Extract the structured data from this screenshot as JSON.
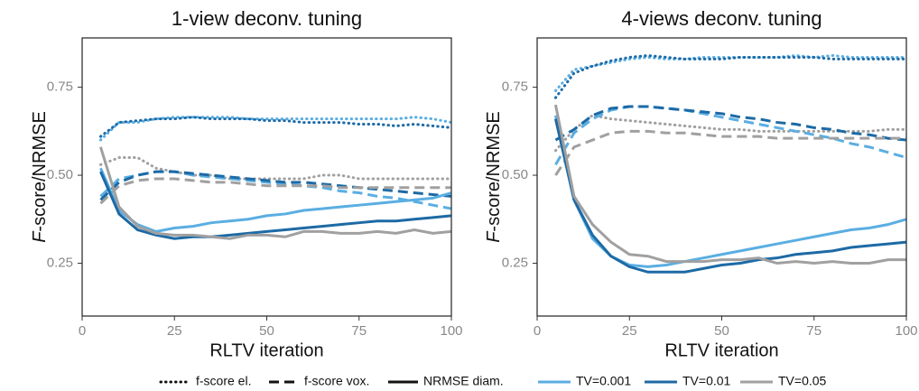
{
  "chart_data": [
    {
      "type": "line",
      "title": "1-view deconv. tuning",
      "xlabel": "RLTV iteration",
      "ylabel": {
        "italic": "F",
        "rest": "-score/NRMSE"
      },
      "xlim": [
        0,
        100
      ],
      "xticks": [
        0,
        25,
        50,
        75,
        100
      ],
      "ylim": [
        0.1,
        0.89
      ],
      "yticks": [
        0.25,
        {
          "value": 0.5,
          "label": "0.50"
        },
        0.75
      ],
      "x": [
        5,
        10,
        15,
        20,
        25,
        30,
        35,
        40,
        45,
        50,
        55,
        60,
        65,
        70,
        75,
        80,
        85,
        90,
        95,
        100
      ],
      "series": [
        {
          "dash": "dotted",
          "color": "#5aaee2",
          "values": [
            0.6,
            0.65,
            0.65,
            0.66,
            0.665,
            0.665,
            0.665,
            0.665,
            0.66,
            0.66,
            0.66,
            0.66,
            0.66,
            0.66,
            0.66,
            0.66,
            0.66,
            0.665,
            0.66,
            0.65
          ]
        },
        {
          "dash": "dotted",
          "color": "#1d6aa5",
          "values": [
            0.61,
            0.65,
            0.655,
            0.66,
            0.66,
            0.665,
            0.66,
            0.66,
            0.66,
            0.655,
            0.655,
            0.65,
            0.65,
            0.65,
            0.645,
            0.645,
            0.64,
            0.645,
            0.64,
            0.635
          ]
        },
        {
          "dash": "dotted",
          "color": "#a0a0a0",
          "values": [
            0.53,
            0.55,
            0.55,
            0.52,
            0.51,
            0.5,
            0.5,
            0.49,
            0.49,
            0.49,
            0.49,
            0.49,
            0.5,
            0.5,
            0.49,
            0.49,
            0.49,
            0.49,
            0.49,
            0.49
          ]
        },
        {
          "dash": "dashed",
          "color": "#5aaee2",
          "values": [
            0.44,
            0.49,
            0.5,
            0.51,
            0.51,
            0.5,
            0.495,
            0.49,
            0.485,
            0.48,
            0.475,
            0.47,
            0.465,
            0.455,
            0.45,
            0.44,
            0.435,
            0.425,
            0.415,
            0.405
          ]
        },
        {
          "dash": "dashed",
          "color": "#1d6aa5",
          "values": [
            0.43,
            0.48,
            0.5,
            0.51,
            0.51,
            0.505,
            0.5,
            0.495,
            0.49,
            0.485,
            0.48,
            0.48,
            0.475,
            0.47,
            0.465,
            0.46,
            0.455,
            0.45,
            0.445,
            0.44
          ]
        },
        {
          "dash": "dashed",
          "color": "#a0a0a0",
          "values": [
            0.42,
            0.47,
            0.485,
            0.49,
            0.49,
            0.485,
            0.48,
            0.48,
            0.475,
            0.47,
            0.47,
            0.47,
            0.47,
            0.465,
            0.465,
            0.465,
            0.465,
            0.465,
            0.465,
            0.465
          ]
        },
        {
          "dash": "solid",
          "color": "#5aaee2",
          "values": [
            0.52,
            0.4,
            0.36,
            0.34,
            0.35,
            0.355,
            0.365,
            0.37,
            0.375,
            0.385,
            0.39,
            0.4,
            0.405,
            0.41,
            0.415,
            0.42,
            0.425,
            0.43,
            0.435,
            0.45
          ]
        },
        {
          "dash": "solid",
          "color": "#1d6aa5",
          "values": [
            0.51,
            0.39,
            0.345,
            0.33,
            0.32,
            0.325,
            0.325,
            0.33,
            0.335,
            0.34,
            0.345,
            0.35,
            0.355,
            0.36,
            0.365,
            0.37,
            0.37,
            0.375,
            0.38,
            0.385
          ]
        },
        {
          "dash": "solid",
          "color": "#a0a0a0",
          "values": [
            0.58,
            0.41,
            0.355,
            0.335,
            0.33,
            0.33,
            0.325,
            0.32,
            0.33,
            0.33,
            0.325,
            0.34,
            0.34,
            0.335,
            0.335,
            0.34,
            0.335,
            0.345,
            0.335,
            0.34
          ]
        }
      ]
    },
    {
      "type": "line",
      "title": "4-views deconv. tuning",
      "xlabel": "RLTV iteration",
      "ylabel": {
        "italic": "F",
        "rest": "-score/NRMSE"
      },
      "xlim": [
        0,
        100
      ],
      "xticks": [
        0,
        25,
        50,
        75,
        100
      ],
      "ylim": [
        0.1,
        0.89
      ],
      "yticks": [
        0.25,
        {
          "value": 0.5,
          "label": "0.50"
        },
        0.75
      ],
      "x": [
        5,
        10,
        15,
        20,
        25,
        30,
        35,
        40,
        45,
        50,
        55,
        60,
        65,
        70,
        75,
        80,
        85,
        90,
        95,
        100
      ],
      "series": [
        {
          "dash": "dotted",
          "color": "#5aaee2",
          "values": [
            0.74,
            0.8,
            0.81,
            0.82,
            0.83,
            0.835,
            0.83,
            0.83,
            0.835,
            0.835,
            0.835,
            0.835,
            0.835,
            0.84,
            0.835,
            0.84,
            0.835,
            0.835,
            0.835,
            0.835
          ]
        },
        {
          "dash": "dotted",
          "color": "#1d6aa5",
          "values": [
            0.72,
            0.79,
            0.81,
            0.825,
            0.835,
            0.84,
            0.835,
            0.83,
            0.83,
            0.83,
            0.835,
            0.835,
            0.835,
            0.835,
            0.835,
            0.83,
            0.83,
            0.83,
            0.83,
            0.83
          ]
        },
        {
          "dash": "dotted",
          "color": "#a0a0a0",
          "values": [
            0.57,
            0.63,
            0.67,
            0.66,
            0.655,
            0.65,
            0.645,
            0.64,
            0.635,
            0.63,
            0.63,
            0.625,
            0.625,
            0.625,
            0.625,
            0.625,
            0.625,
            0.625,
            0.63,
            0.63
          ]
        },
        {
          "dash": "dashed",
          "color": "#5aaee2",
          "values": [
            0.53,
            0.62,
            0.66,
            0.685,
            0.695,
            0.695,
            0.69,
            0.685,
            0.675,
            0.665,
            0.655,
            0.645,
            0.635,
            0.625,
            0.615,
            0.605,
            0.59,
            0.58,
            0.565,
            0.55
          ]
        },
        {
          "dash": "dashed",
          "color": "#1d6aa5",
          "values": [
            0.6,
            0.63,
            0.67,
            0.69,
            0.695,
            0.695,
            0.69,
            0.685,
            0.68,
            0.675,
            0.665,
            0.66,
            0.65,
            0.645,
            0.635,
            0.63,
            0.62,
            0.615,
            0.605,
            0.6
          ]
        },
        {
          "dash": "dashed",
          "color": "#a0a0a0",
          "values": [
            0.5,
            0.58,
            0.6,
            0.62,
            0.625,
            0.625,
            0.62,
            0.62,
            0.615,
            0.61,
            0.61,
            0.61,
            0.605,
            0.605,
            0.605,
            0.605,
            0.605,
            0.605,
            0.605,
            0.605
          ]
        },
        {
          "dash": "solid",
          "color": "#5aaee2",
          "values": [
            0.67,
            0.43,
            0.32,
            0.27,
            0.245,
            0.24,
            0.245,
            0.255,
            0.265,
            0.275,
            0.285,
            0.295,
            0.305,
            0.315,
            0.325,
            0.335,
            0.345,
            0.35,
            0.36,
            0.375
          ]
        },
        {
          "dash": "solid",
          "color": "#1d6aa5",
          "values": [
            0.66,
            0.43,
            0.33,
            0.27,
            0.24,
            0.225,
            0.225,
            0.225,
            0.235,
            0.245,
            0.25,
            0.26,
            0.265,
            0.275,
            0.28,
            0.285,
            0.295,
            0.3,
            0.305,
            0.31
          ]
        },
        {
          "dash": "solid",
          "color": "#a0a0a0",
          "values": [
            0.7,
            0.44,
            0.36,
            0.31,
            0.275,
            0.27,
            0.255,
            0.255,
            0.255,
            0.26,
            0.26,
            0.265,
            0.25,
            0.255,
            0.25,
            0.255,
            0.25,
            0.25,
            0.26,
            0.26
          ]
        }
      ]
    }
  ],
  "legend": {
    "styles": [
      {
        "label": "f-score el.",
        "dash": "dotted"
      },
      {
        "label": "f-score vox.",
        "dash": "dashed"
      },
      {
        "label": "NRMSE diam.",
        "dash": "solid"
      }
    ],
    "colors": [
      {
        "label": "TV=0.001",
        "color": "#5aaee2"
      },
      {
        "label": "TV=0.01",
        "color": "#1d6aa5"
      },
      {
        "label": "TV=0.05",
        "color": "#a0a0a0"
      }
    ]
  }
}
